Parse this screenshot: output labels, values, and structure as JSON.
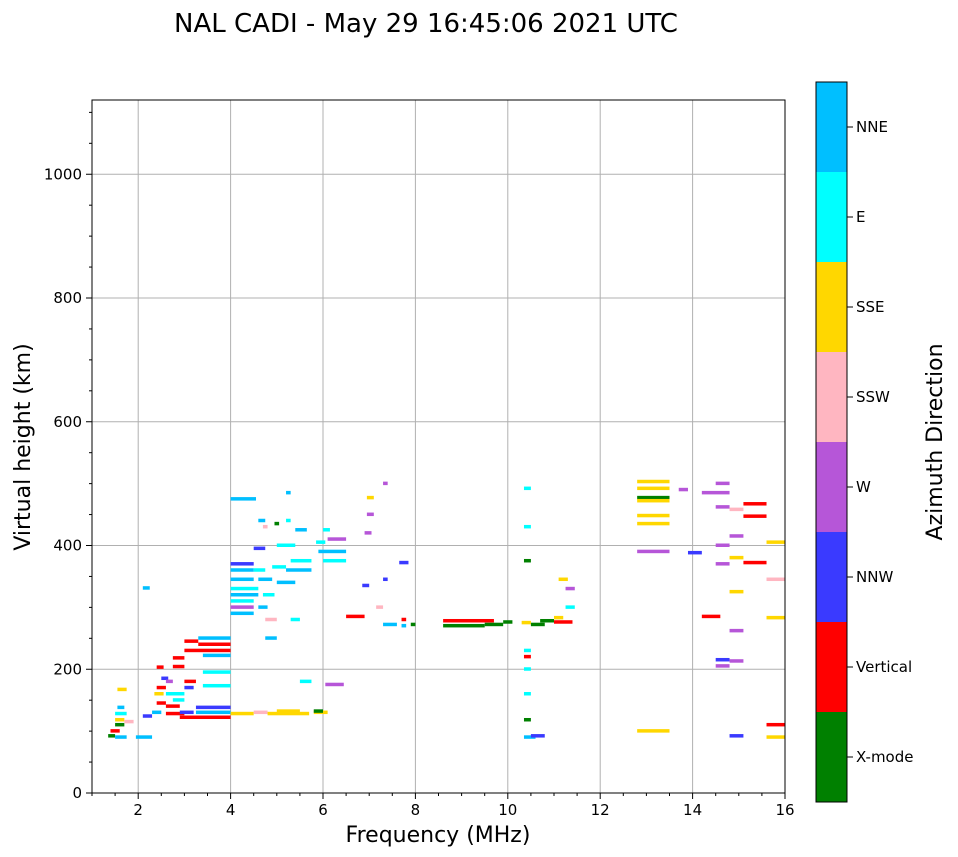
{
  "chart_data": {
    "type": "scatter",
    "title": "NAL CADI - May 29 16:45:06 2021 UTC",
    "xlabel": "Frequency (MHz)",
    "ylabel": "Virtual height (km)",
    "xlim": [
      1,
      16
    ],
    "ylim": [
      0,
      1120
    ],
    "xticks": [
      2,
      4,
      6,
      8,
      10,
      12,
      14,
      16
    ],
    "yticks": [
      0,
      200,
      400,
      600,
      800,
      1000
    ],
    "grid": true,
    "colorbar": {
      "title": "Azimuth Direction",
      "categories": [
        {
          "name": "X-mode",
          "color": "#008000"
        },
        {
          "name": "Vertical",
          "color": "#ff0000"
        },
        {
          "name": "NNW",
          "color": "#3a3aff"
        },
        {
          "name": "W",
          "color": "#b656d8"
        },
        {
          "name": "SSW",
          "color": "#ffb6c1"
        },
        {
          "name": "SSE",
          "color": "#ffd700"
        },
        {
          "name": "E",
          "color": "#00ffff"
        },
        {
          "name": "NNE",
          "color": "#00bfff"
        }
      ]
    },
    "segments": [
      {
        "f0": 1.35,
        "f1": 1.5,
        "h": 92,
        "c": "X-mode"
      },
      {
        "f0": 1.4,
        "f1": 1.6,
        "h": 100,
        "c": "Vertical"
      },
      {
        "f0": 1.5,
        "f1": 1.7,
        "h": 110,
        "c": "X-mode"
      },
      {
        "f0": 1.5,
        "f1": 1.7,
        "h": 118,
        "c": "SSE"
      },
      {
        "f0": 1.5,
        "f1": 1.75,
        "h": 128,
        "c": "E"
      },
      {
        "f0": 1.55,
        "f1": 1.7,
        "h": 138,
        "c": "NNE"
      },
      {
        "f0": 1.55,
        "f1": 1.75,
        "h": 167,
        "c": "SSE"
      },
      {
        "f0": 1.7,
        "f1": 1.9,
        "h": 115,
        "c": "SSW"
      },
      {
        "f0": 1.5,
        "f1": 1.75,
        "h": 90,
        "c": "NNE"
      },
      {
        "f0": 1.95,
        "f1": 2.3,
        "h": 90,
        "c": "NNE"
      },
      {
        "f0": 2.1,
        "f1": 2.25,
        "h": 331,
        "c": "NNE"
      },
      {
        "f0": 2.1,
        "f1": 2.3,
        "h": 124,
        "c": "NNW"
      },
      {
        "f0": 2.3,
        "f1": 2.5,
        "h": 130,
        "c": "NNE"
      },
      {
        "f0": 2.35,
        "f1": 2.55,
        "h": 160,
        "c": "SSE"
      },
      {
        "f0": 2.4,
        "f1": 2.6,
        "h": 145,
        "c": "Vertical"
      },
      {
        "f0": 2.4,
        "f1": 2.6,
        "h": 170,
        "c": "Vertical"
      },
      {
        "f0": 2.4,
        "f1": 2.55,
        "h": 203,
        "c": "Vertical"
      },
      {
        "f0": 2.5,
        "f1": 2.65,
        "h": 185,
        "c": "NNW"
      },
      {
        "f0": 2.6,
        "f1": 3.0,
        "h": 160,
        "c": "E"
      },
      {
        "f0": 2.6,
        "f1": 2.9,
        "h": 140,
        "c": "Vertical"
      },
      {
        "f0": 2.6,
        "f1": 3.0,
        "h": 128,
        "c": "Vertical"
      },
      {
        "f0": 2.6,
        "f1": 2.75,
        "h": 180,
        "c": "W"
      },
      {
        "f0": 2.75,
        "f1": 3.0,
        "h": 150,
        "c": "E"
      },
      {
        "f0": 2.75,
        "f1": 3.0,
        "h": 204,
        "c": "Vertical"
      },
      {
        "f0": 2.75,
        "f1": 3.0,
        "h": 218,
        "c": "Vertical"
      },
      {
        "f0": 2.9,
        "f1": 4.0,
        "h": 122,
        "c": "Vertical"
      },
      {
        "f0": 2.9,
        "f1": 3.2,
        "h": 130,
        "c": "NNW"
      },
      {
        "f0": 3.0,
        "f1": 3.25,
        "h": 180,
        "c": "Vertical"
      },
      {
        "f0": 3.0,
        "f1": 3.2,
        "h": 170,
        "c": "NNW"
      },
      {
        "f0": 3.25,
        "f1": 4.0,
        "h": 130,
        "c": "NNE"
      },
      {
        "f0": 3.25,
        "f1": 4.0,
        "h": 138,
        "c": "NNW"
      },
      {
        "f0": 3.4,
        "f1": 4.0,
        "h": 173,
        "c": "E"
      },
      {
        "f0": 3.4,
        "f1": 4.0,
        "h": 195,
        "c": "E"
      },
      {
        "f0": 3.0,
        "f1": 4.0,
        "h": 230,
        "c": "Vertical"
      },
      {
        "f0": 3.0,
        "f1": 3.3,
        "h": 245,
        "c": "Vertical"
      },
      {
        "f0": 3.3,
        "f1": 4.0,
        "h": 240,
        "c": "Vertical"
      },
      {
        "f0": 3.3,
        "f1": 4.0,
        "h": 250,
        "c": "NNE"
      },
      {
        "f0": 3.4,
        "f1": 4.0,
        "h": 222,
        "c": "NNE"
      },
      {
        "f0": 4.0,
        "f1": 4.5,
        "h": 128,
        "c": "SSE"
      },
      {
        "f0": 4.5,
        "f1": 4.8,
        "h": 130,
        "c": "SSW"
      },
      {
        "f0": 4.8,
        "f1": 5.7,
        "h": 128,
        "c": "SSE"
      },
      {
        "f0": 5.0,
        "f1": 5.5,
        "h": 132,
        "c": "SSE"
      },
      {
        "f0": 5.8,
        "f1": 6.1,
        "h": 130,
        "c": "SSE"
      },
      {
        "f0": 5.8,
        "f1": 6.0,
        "h": 132,
        "c": "X-mode"
      },
      {
        "f0": 4.0,
        "f1": 4.55,
        "h": 475,
        "c": "NNE"
      },
      {
        "f0": 4.6,
        "f1": 4.75,
        "h": 440,
        "c": "NNE"
      },
      {
        "f0": 4.7,
        "f1": 4.8,
        "h": 430,
        "c": "SSW"
      },
      {
        "f0": 4.95,
        "f1": 5.05,
        "h": 435,
        "c": "X-mode"
      },
      {
        "f0": 5.2,
        "f1": 5.3,
        "h": 440,
        "c": "E"
      },
      {
        "f0": 5.4,
        "f1": 5.65,
        "h": 425,
        "c": "NNE"
      },
      {
        "f0": 5.2,
        "f1": 5.3,
        "h": 485,
        "c": "NNE"
      },
      {
        "f0": 4.5,
        "f1": 4.75,
        "h": 395,
        "c": "NNW"
      },
      {
        "f0": 4.0,
        "f1": 4.5,
        "h": 370,
        "c": "NNW"
      },
      {
        "f0": 4.0,
        "f1": 4.5,
        "h": 360,
        "c": "NNE"
      },
      {
        "f0": 4.0,
        "f1": 4.5,
        "h": 345,
        "c": "NNE"
      },
      {
        "f0": 4.0,
        "f1": 4.6,
        "h": 330,
        "c": "E"
      },
      {
        "f0": 4.0,
        "f1": 4.6,
        "h": 320,
        "c": "NNE"
      },
      {
        "f0": 4.0,
        "f1": 4.5,
        "h": 310,
        "c": "E"
      },
      {
        "f0": 4.0,
        "f1": 4.5,
        "h": 300,
        "c": "W"
      },
      {
        "f0": 4.0,
        "f1": 4.5,
        "h": 290,
        "c": "NNE"
      },
      {
        "f0": 4.5,
        "f1": 4.75,
        "h": 360,
        "c": "E"
      },
      {
        "f0": 4.6,
        "f1": 4.9,
        "h": 345,
        "c": "NNE"
      },
      {
        "f0": 4.7,
        "f1": 4.95,
        "h": 320,
        "c": "E"
      },
      {
        "f0": 4.6,
        "f1": 4.8,
        "h": 300,
        "c": "NNE"
      },
      {
        "f0": 4.75,
        "f1": 5.0,
        "h": 280,
        "c": "SSW"
      },
      {
        "f0": 4.75,
        "f1": 5.0,
        "h": 250,
        "c": "NNE"
      },
      {
        "f0": 4.9,
        "f1": 5.2,
        "h": 365,
        "c": "E"
      },
      {
        "f0": 5.0,
        "f1": 5.4,
        "h": 340,
        "c": "NNE"
      },
      {
        "f0": 5.2,
        "f1": 5.75,
        "h": 360,
        "c": "NNE"
      },
      {
        "f0": 5.3,
        "f1": 5.75,
        "h": 375,
        "c": "E"
      },
      {
        "f0": 5.0,
        "f1": 5.4,
        "h": 400,
        "c": "E"
      },
      {
        "f0": 5.3,
        "f1": 5.5,
        "h": 280,
        "c": "E"
      },
      {
        "f0": 5.5,
        "f1": 5.75,
        "h": 180,
        "c": "E"
      },
      {
        "f0": 5.85,
        "f1": 6.05,
        "h": 405,
        "c": "E"
      },
      {
        "f0": 5.9,
        "f1": 6.5,
        "h": 390,
        "c": "NNE"
      },
      {
        "f0": 6.0,
        "f1": 6.5,
        "h": 375,
        "c": "E"
      },
      {
        "f0": 6.1,
        "f1": 6.5,
        "h": 410,
        "c": "W"
      },
      {
        "f0": 6.0,
        "f1": 6.15,
        "h": 425,
        "c": "E"
      },
      {
        "f0": 6.05,
        "f1": 6.45,
        "h": 175,
        "c": "W"
      },
      {
        "f0": 6.5,
        "f1": 6.9,
        "h": 285,
        "c": "Vertical"
      },
      {
        "f0": 6.85,
        "f1": 7.0,
        "h": 335,
        "c": "NNW"
      },
      {
        "f0": 6.9,
        "f1": 7.05,
        "h": 420,
        "c": "W"
      },
      {
        "f0": 6.95,
        "f1": 7.1,
        "h": 477,
        "c": "SSE"
      },
      {
        "f0": 6.95,
        "f1": 7.1,
        "h": 450,
        "c": "W"
      },
      {
        "f0": 7.15,
        "f1": 7.3,
        "h": 300,
        "c": "SSW"
      },
      {
        "f0": 7.3,
        "f1": 7.4,
        "h": 500,
        "c": "W"
      },
      {
        "f0": 7.3,
        "f1": 7.4,
        "h": 345,
        "c": "NNW"
      },
      {
        "f0": 7.3,
        "f1": 7.6,
        "h": 272,
        "c": "NNE"
      },
      {
        "f0": 7.65,
        "f1": 7.85,
        "h": 372,
        "c": "NNW"
      },
      {
        "f0": 7.7,
        "f1": 7.8,
        "h": 280,
        "c": "Vertical"
      },
      {
        "f0": 7.7,
        "f1": 7.8,
        "h": 270,
        "c": "NNE"
      },
      {
        "f0": 7.9,
        "f1": 8.0,
        "h": 272,
        "c": "X-mode"
      },
      {
        "f0": 8.6,
        "f1": 9.7,
        "h": 278,
        "c": "Vertical"
      },
      {
        "f0": 8.6,
        "f1": 9.5,
        "h": 270,
        "c": "X-mode"
      },
      {
        "f0": 9.5,
        "f1": 9.9,
        "h": 272,
        "c": "X-mode"
      },
      {
        "f0": 9.9,
        "f1": 10.1,
        "h": 276,
        "c": "X-mode"
      },
      {
        "f0": 10.3,
        "f1": 10.5,
        "h": 275,
        "c": "SSE"
      },
      {
        "f0": 10.5,
        "f1": 10.8,
        "h": 272,
        "c": "X-mode"
      },
      {
        "f0": 10.7,
        "f1": 11.0,
        "h": 278,
        "c": "X-mode"
      },
      {
        "f0": 11.0,
        "f1": 11.4,
        "h": 276,
        "c": "Vertical"
      },
      {
        "f0": 11.0,
        "f1": 11.2,
        "h": 283,
        "c": "SSE"
      },
      {
        "f0": 10.35,
        "f1": 10.5,
        "h": 492,
        "c": "E"
      },
      {
        "f0": 10.35,
        "f1": 10.5,
        "h": 430,
        "c": "E"
      },
      {
        "f0": 10.35,
        "f1": 10.5,
        "h": 375,
        "c": "X-mode"
      },
      {
        "f0": 10.35,
        "f1": 10.5,
        "h": 230,
        "c": "E"
      },
      {
        "f0": 10.35,
        "f1": 10.5,
        "h": 220,
        "c": "Vertical"
      },
      {
        "f0": 10.35,
        "f1": 10.5,
        "h": 200,
        "c": "E"
      },
      {
        "f0": 10.35,
        "f1": 10.5,
        "h": 160,
        "c": "E"
      },
      {
        "f0": 10.35,
        "f1": 10.5,
        "h": 118,
        "c": "X-mode"
      },
      {
        "f0": 10.35,
        "f1": 10.6,
        "h": 90,
        "c": "NNE"
      },
      {
        "f0": 10.5,
        "f1": 10.8,
        "h": 92,
        "c": "NNW"
      },
      {
        "f0": 11.1,
        "f1": 11.3,
        "h": 345,
        "c": "SSE"
      },
      {
        "f0": 11.25,
        "f1": 11.45,
        "h": 330,
        "c": "W"
      },
      {
        "f0": 11.25,
        "f1": 11.45,
        "h": 300,
        "c": "E"
      },
      {
        "f0": 12.8,
        "f1": 13.5,
        "h": 503,
        "c": "SSE"
      },
      {
        "f0": 12.8,
        "f1": 13.5,
        "h": 492,
        "c": "SSE"
      },
      {
        "f0": 12.8,
        "f1": 13.5,
        "h": 477,
        "c": "X-mode"
      },
      {
        "f0": 12.8,
        "f1": 13.5,
        "h": 472,
        "c": "SSE"
      },
      {
        "f0": 12.8,
        "f1": 13.5,
        "h": 448,
        "c": "SSE"
      },
      {
        "f0": 12.8,
        "f1": 13.5,
        "h": 435,
        "c": "SSE"
      },
      {
        "f0": 12.8,
        "f1": 13.5,
        "h": 390,
        "c": "W"
      },
      {
        "f0": 12.8,
        "f1": 13.5,
        "h": 100,
        "c": "SSE"
      },
      {
        "f0": 13.7,
        "f1": 13.9,
        "h": 490,
        "c": "W"
      },
      {
        "f0": 13.9,
        "f1": 14.2,
        "h": 388,
        "c": "NNW"
      },
      {
        "f0": 14.2,
        "f1": 14.6,
        "h": 285,
        "c": "Vertical"
      },
      {
        "f0": 14.2,
        "f1": 14.8,
        "h": 485,
        "c": "W"
      },
      {
        "f0": 14.5,
        "f1": 14.8,
        "h": 500,
        "c": "W"
      },
      {
        "f0": 14.5,
        "f1": 14.8,
        "h": 462,
        "c": "W"
      },
      {
        "f0": 14.5,
        "f1": 14.8,
        "h": 400,
        "c": "W"
      },
      {
        "f0": 14.5,
        "f1": 14.8,
        "h": 370,
        "c": "W"
      },
      {
        "f0": 14.5,
        "f1": 14.8,
        "h": 215,
        "c": "NNW"
      },
      {
        "f0": 14.5,
        "f1": 14.8,
        "h": 205,
        "c": "W"
      },
      {
        "f0": 14.8,
        "f1": 15.1,
        "h": 458,
        "c": "SSW"
      },
      {
        "f0": 14.8,
        "f1": 15.1,
        "h": 415,
        "c": "W"
      },
      {
        "f0": 14.8,
        "f1": 15.1,
        "h": 380,
        "c": "SSE"
      },
      {
        "f0": 14.8,
        "f1": 15.1,
        "h": 325,
        "c": "SSE"
      },
      {
        "f0": 14.8,
        "f1": 15.1,
        "h": 262,
        "c": "W"
      },
      {
        "f0": 14.8,
        "f1": 15.1,
        "h": 213,
        "c": "W"
      },
      {
        "f0": 14.8,
        "f1": 15.1,
        "h": 92,
        "c": "NNW"
      },
      {
        "f0": 15.1,
        "f1": 15.6,
        "h": 467,
        "c": "Vertical"
      },
      {
        "f0": 15.1,
        "f1": 15.6,
        "h": 447,
        "c": "Vertical"
      },
      {
        "f0": 15.1,
        "f1": 15.6,
        "h": 372,
        "c": "Vertical"
      },
      {
        "f0": 15.6,
        "f1": 16.0,
        "h": 405,
        "c": "SSE"
      },
      {
        "f0": 15.6,
        "f1": 16.0,
        "h": 345,
        "c": "SSW"
      },
      {
        "f0": 15.6,
        "f1": 16.0,
        "h": 283,
        "c": "SSE"
      },
      {
        "f0": 15.6,
        "f1": 16.0,
        "h": 110,
        "c": "Vertical"
      },
      {
        "f0": 15.6,
        "f1": 16.0,
        "h": 90,
        "c": "SSE"
      }
    ]
  }
}
